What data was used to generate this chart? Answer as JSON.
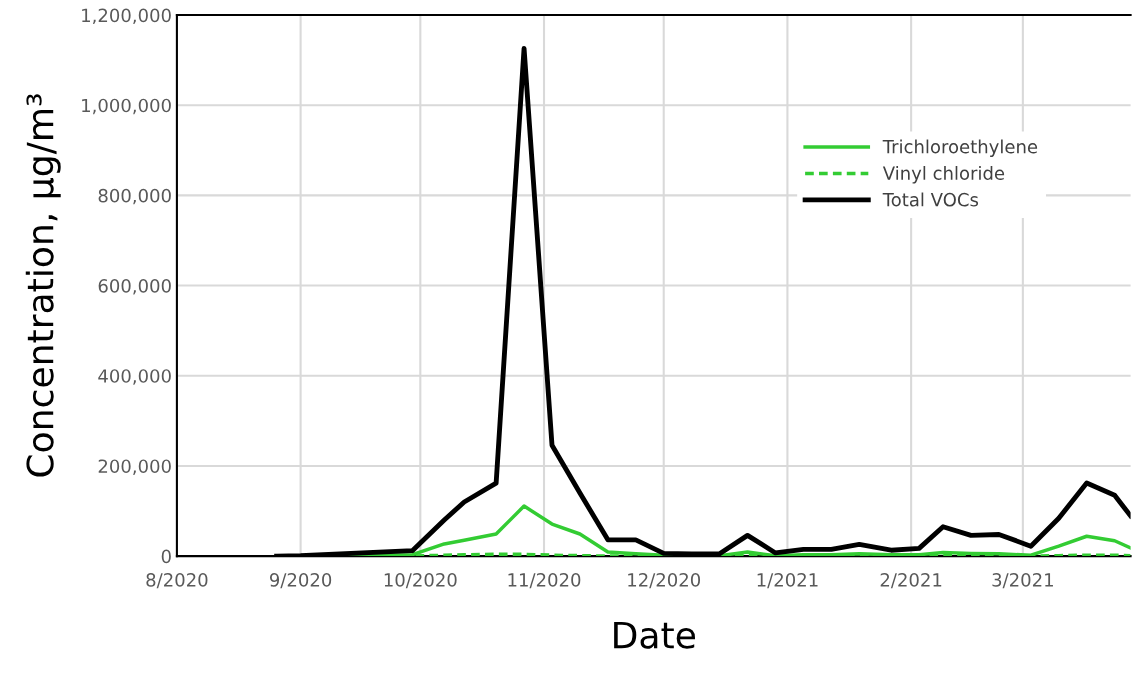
{
  "chart_data": {
    "type": "line",
    "xlabel": "Date",
    "ylabel": "Concentration, µg/m³",
    "x": [
      "2020-08-26",
      "2020-09-01",
      "2020-09-29",
      "2020-10-07",
      "2020-10-12",
      "2020-10-20",
      "2020-10-27",
      "2020-11-03",
      "2020-11-10",
      "2020-11-17",
      "2020-11-24",
      "2020-12-01",
      "2020-12-08",
      "2020-12-15",
      "2020-12-22",
      "2020-12-29",
      "2021-01-05",
      "2021-01-12",
      "2021-01-19",
      "2021-01-27",
      "2021-02-03",
      "2021-02-09",
      "2021-02-16",
      "2021-02-23",
      "2021-03-03",
      "2021-03-10",
      "2021-03-17",
      "2021-03-24",
      "2021-03-28"
    ],
    "series": [
      {
        "name": "Trichloroethylene",
        "color": "#33cc33",
        "line_style": "solid",
        "values": [
          0,
          0,
          3000,
          27000,
          35000,
          49000,
          111000,
          71000,
          49000,
          9000,
          5000,
          2000,
          1000,
          1000,
          9000,
          1000,
          3000,
          3000,
          5000,
          3000,
          3000,
          8000,
          6000,
          5000,
          2000,
          22000,
          44000,
          34000,
          18000
        ]
      },
      {
        "name": "Vinyl chloride",
        "color": "#33cc33",
        "line_style": "dashed",
        "values": [
          0,
          0,
          0,
          2000,
          3000,
          4000,
          4000,
          2000,
          1000,
          0,
          0,
          0,
          0,
          0,
          1000,
          0,
          0,
          0,
          0,
          0,
          0,
          1000,
          1000,
          1000,
          0,
          1000,
          2000,
          2000,
          1000
        ]
      },
      {
        "name": "Total VOCs",
        "color": "#000000",
        "line_style": "solid",
        "values": [
          0,
          1000,
          12000,
          80000,
          120000,
          162000,
          1126000,
          246000,
          140000,
          36000,
          36000,
          6000,
          5000,
          5000,
          46000,
          7000,
          15000,
          15000,
          26000,
          13000,
          17000,
          65000,
          46000,
          48000,
          22000,
          84000,
          162000,
          135000,
          89000
        ]
      }
    ],
    "xlim": [
      "2020-08-01",
      "2021-03-28"
    ],
    "xticks": [
      {
        "value": "2020-08-01",
        "label": "8/2020"
      },
      {
        "value": "2020-09-01",
        "label": "9/2020"
      },
      {
        "value": "2020-10-01",
        "label": "10/2020"
      },
      {
        "value": "2020-11-01",
        "label": "11/2020"
      },
      {
        "value": "2020-12-01",
        "label": "12/2020"
      },
      {
        "value": "2021-01-01",
        "label": "1/2021"
      },
      {
        "value": "2021-02-01",
        "label": "2/2021"
      },
      {
        "value": "2021-03-01",
        "label": "3/2021"
      }
    ],
    "ylim": [
      0,
      1200000
    ],
    "yticks": [
      {
        "value": 0,
        "label": "0"
      },
      {
        "value": 200000,
        "label": "200,000"
      },
      {
        "value": 400000,
        "label": "400,000"
      },
      {
        "value": 600000,
        "label": "600,000"
      },
      {
        "value": 800000,
        "label": "800,000"
      },
      {
        "value": 1000000,
        "label": "1,000,000"
      },
      {
        "value": 1200000,
        "label": "1,200,000"
      }
    ],
    "grid": true,
    "legend": "top right",
    "marker": "none"
  }
}
